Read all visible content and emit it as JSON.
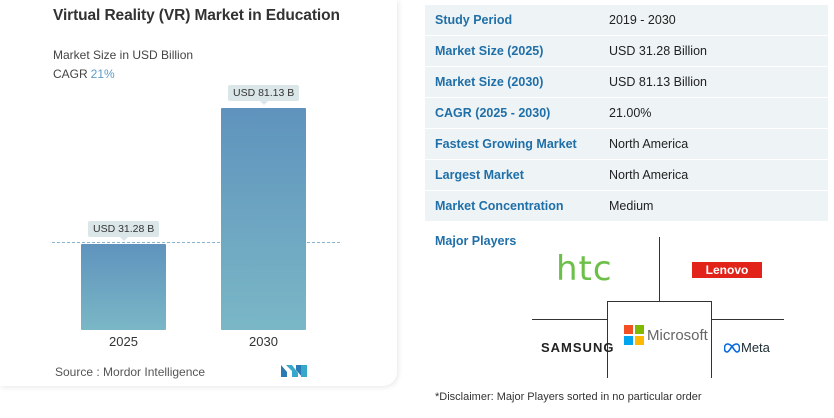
{
  "chart": {
    "title": "Virtual Reality (VR) Market in Education",
    "subtitle": "Market Size in USD Billion",
    "cagr_label": "CAGR",
    "cagr_value": "21%",
    "source": "Source : Mordor Intelligence"
  },
  "chart_data": {
    "type": "bar",
    "title": "Virtual Reality (VR) Market in Education",
    "ylabel": "Market Size in USD Billion",
    "categories": [
      "2025",
      "2030"
    ],
    "values": [
      31.28,
      81.13
    ],
    "data_labels": [
      "USD 31.28 B",
      "USD 81.13 B"
    ],
    "ylim": [
      0,
      85
    ]
  },
  "market_table": {
    "rows": [
      {
        "key": "Study Period",
        "value": "2019 - 2030"
      },
      {
        "key": "Market Size (2025)",
        "value": "USD 31.28 Billion"
      },
      {
        "key": "Market Size (2030)",
        "value": "USD 81.13 Billion"
      },
      {
        "key": "CAGR (2025 - 2030)",
        "value": "21.00%"
      },
      {
        "key": "Fastest Growing Market",
        "value": "North America"
      },
      {
        "key": "Largest Market",
        "value": "North America"
      },
      {
        "key": "Market Concentration",
        "value": "Medium"
      }
    ]
  },
  "players": {
    "label": "Major Players",
    "logos": {
      "htc": "htc",
      "lenovo": "Lenovo",
      "samsung": "SAMSUNG",
      "microsoft": "Microsoft",
      "meta": "Meta"
    }
  },
  "disclaimer": "*Disclaimer: Major Players sorted in no particular order",
  "colors": {
    "bar_top": "#5f93bd",
    "bar_bottom": "#7ab7c6",
    "key_text": "#1f6fa8",
    "cagr_value": "#5b9bc9",
    "htc_green": "#6cc04a",
    "lenovo_red": "#e2231a"
  }
}
